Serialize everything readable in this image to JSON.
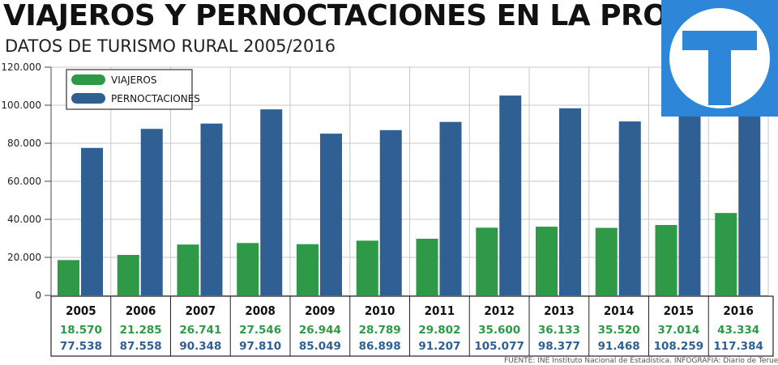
{
  "header": {
    "title": "VIAJEROS Y PERNOCTACIONES EN LA PROVINCIA",
    "subtitle": "DATOS DE TURISMO RURAL 2005/2016"
  },
  "source": "FUENTE: INE Instituto Nacional de Estadística. INFOGRAFÍA: Diario de Teruel",
  "logo": {
    "letter": "T",
    "icon": "newspaper-logo-icon"
  },
  "colors": {
    "viajeros": "#2e9a47",
    "pernoctaciones": "#2f5f93",
    "logo_bg": "#2d86d8"
  },
  "chart_data": {
    "type": "bar",
    "title": "VIAJEROS Y PERNOCTACIONES EN LA PROVINCIA",
    "subtitle": "DATOS DE TURISMO RURAL 2005/2016",
    "categories": [
      "2005",
      "2006",
      "2007",
      "2008",
      "2009",
      "2010",
      "2011",
      "2012",
      "2013",
      "2014",
      "2015",
      "2016"
    ],
    "series": [
      {
        "name": "VIAJEROS",
        "values": [
          18570,
          21285,
          26741,
          27546,
          26944,
          28789,
          29802,
          35600,
          36133,
          35520,
          37014,
          43334
        ],
        "labels": [
          "18.570",
          "21.285",
          "26.741",
          "27.546",
          "26.944",
          "28.789",
          "29.802",
          "35.600",
          "36.133",
          "35.520",
          "37.014",
          "43.334"
        ]
      },
      {
        "name": "PERNOCTACIONES",
        "values": [
          77538,
          87558,
          90348,
          97810,
          85049,
          86898,
          91207,
          105077,
          98377,
          91468,
          108259,
          117384
        ],
        "labels": [
          "77.538",
          "87.558",
          "90.348",
          "97.810",
          "85.049",
          "86.898",
          "91.207",
          "105.077",
          "98.377",
          "91.468",
          "108.259",
          "117.384"
        ]
      }
    ],
    "ylim": [
      0,
      120000
    ],
    "yticks": [
      0,
      20000,
      40000,
      60000,
      80000,
      100000,
      120000
    ],
    "ytick_labels": [
      "0",
      "20.000",
      "40.000",
      "60.000",
      "80.000",
      "100.000",
      "120.000"
    ],
    "grid": true,
    "legend": "top-left"
  }
}
